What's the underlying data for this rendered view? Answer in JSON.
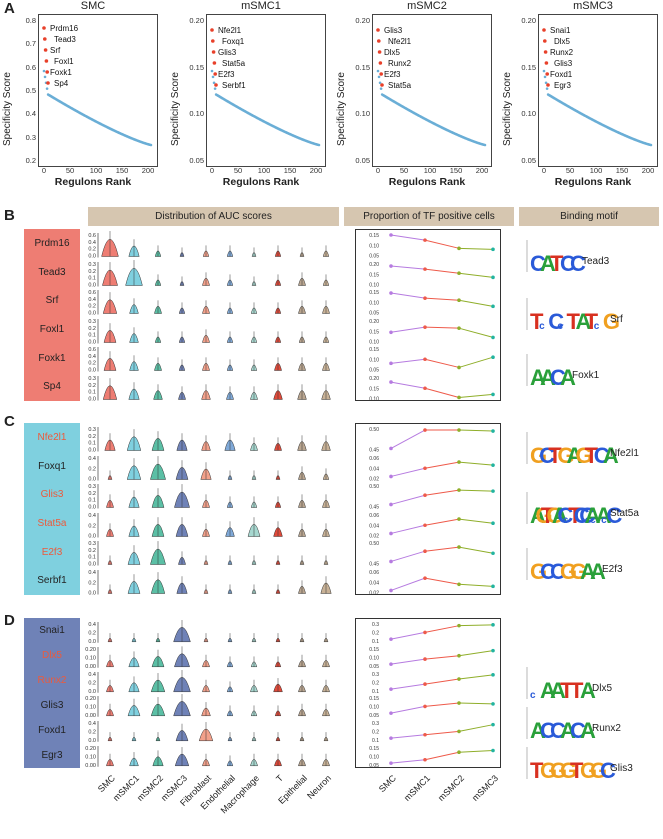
{
  "panel_letters": [
    "A",
    "B",
    "C",
    "D"
  ],
  "panel_a": {
    "ylabel": "Specificity Score",
    "xlabel": "Regulons Rank",
    "charts": [
      {
        "title": "SMC",
        "yticks": [
          "0.8",
          "0.7",
          "0.6",
          "0.5",
          "0.4",
          "0.3",
          "0.2"
        ],
        "xticks": [
          "0",
          "50",
          "100",
          "150",
          "200"
        ],
        "labels": [
          "Prdm16",
          "Tead3",
          "Srf",
          "Foxl1",
          "Foxk1",
          "Sp4"
        ]
      },
      {
        "title": "mSMC1",
        "yticks": [
          "0.20",
          "0.15",
          "0.10",
          "0.05"
        ],
        "xticks": [
          "0",
          "50",
          "100",
          "150",
          "200"
        ],
        "labels": [
          "Nfe2l1",
          "Foxq1",
          "Glis3",
          "Stat5a",
          "E2f3",
          "Serbf1"
        ]
      },
      {
        "title": "mSMC2",
        "yticks": [
          "0.20",
          "0.15",
          "0.10",
          "0.05"
        ],
        "xticks": [
          "0",
          "50",
          "100",
          "150",
          "200"
        ],
        "labels": [
          "Glis3",
          "Nfe2l1",
          "Dlx5",
          "Runx2",
          "E2f3",
          "Stat5a"
        ]
      },
      {
        "title": "mSMC3",
        "yticks": [
          "0.20",
          "0.15",
          "0.10",
          "0.05"
        ],
        "xticks": [
          "0",
          "50",
          "100",
          "150",
          "200"
        ],
        "labels": [
          "Snai1",
          "Dlx5",
          "Runx2",
          "Glis3",
          "Foxd1",
          "Egr3"
        ]
      }
    ]
  },
  "headers": {
    "auc": "Distribution of AUC scores",
    "tf": "Proportion of TF positive cells",
    "motif": "Binding motif"
  },
  "panel_b_genes": [
    "Prdm16",
    "Tead3",
    "Srf",
    "Foxl1",
    "Foxk1",
    "Sp4"
  ],
  "panel_c_genes": [
    "Nfe2l1",
    "Foxq1",
    "Glis3",
    "Stat5a",
    "E2f3",
    "Serbf1"
  ],
  "panel_d_genes": [
    "Snai1",
    "Dlx5",
    "Runx2",
    "Glis3",
    "Foxd1",
    "Egr3"
  ],
  "cell_types": [
    "SMC",
    "mSMC1",
    "mSMC2",
    "mSMC3",
    "Fibroblast",
    "Endothelial",
    "Macrophage",
    "T",
    "Epithelial",
    "Neuron"
  ],
  "tf_xticks": [
    "SMC",
    "mSMC1",
    "mSMC2",
    "mSMC3"
  ],
  "motifs_b": [
    {
      "logo": "CATCC",
      "name": "Tead3"
    },
    {
      "logo": "TcCcTATcG",
      "name": "Srf"
    },
    {
      "logo": "AACA",
      "name": "Foxk1"
    }
  ],
  "motifs_c": [
    {
      "logo": "GCTGAGTCA",
      "name": "Nfe2l1"
    },
    {
      "logo": "AGTGACcTCCAcAcC",
      "name": "Stat5a"
    },
    {
      "logo": "GCCGGAA",
      "name": "E2f3"
    }
  ],
  "motifs_d": [
    {
      "logo": "cAATTA",
      "name": "Dlx5"
    },
    {
      "logo": "ACCACA",
      "name": "Runx2"
    },
    {
      "logo": "TGGGTGGC",
      "name": "Glis3"
    }
  ],
  "colors": {
    "scatter": "#6aaed6",
    "highlight": "#e8402a",
    "header_bg": "#d6c6b0",
    "b_box": "#ee7d73",
    "c_box": "#7fd0df",
    "d_box": "#6f82b7"
  }
}
